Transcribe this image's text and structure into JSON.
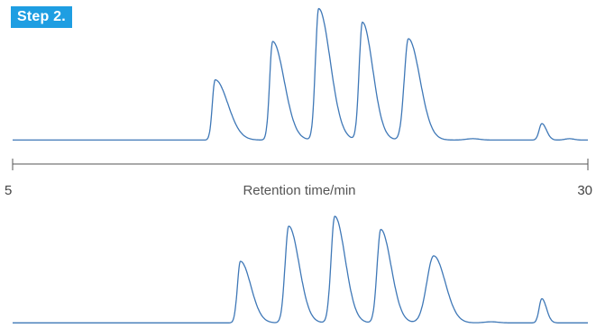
{
  "header": {
    "step_label": "Step 2."
  },
  "chart_data": {
    "type": "line",
    "xlabel": "Retention time/min",
    "xlim": [
      5,
      30
    ],
    "x_ticks": [
      "5",
      "30"
    ],
    "ylim": [
      0,
      1
    ],
    "grid": false,
    "series": [
      {
        "baseline": 0.03,
        "peaks": [
          {
            "t": 13.8,
            "h": 0.44,
            "w1": 0.12,
            "w2": 0.55
          },
          {
            "t": 16.3,
            "h": 0.72,
            "w1": 0.13,
            "w2": 0.5
          },
          {
            "t": 18.3,
            "h": 0.96,
            "w1": 0.14,
            "w2": 0.5
          },
          {
            "t": 20.2,
            "h": 0.86,
            "w1": 0.14,
            "w2": 0.45
          },
          {
            "t": 22.2,
            "h": 0.74,
            "w1": 0.18,
            "w2": 0.5
          },
          {
            "t": 28.0,
            "h": 0.12,
            "w1": 0.12,
            "w2": 0.2
          }
        ],
        "noise": [
          {
            "t": 25.0,
            "h": 0.01,
            "w": 0.3
          },
          {
            "t": 29.2,
            "h": 0.01,
            "w": 0.2
          }
        ]
      },
      {
        "baseline": 0.03,
        "peaks": [
          {
            "t": 14.9,
            "h": 0.56,
            "w1": 0.13,
            "w2": 0.45
          },
          {
            "t": 17.0,
            "h": 0.88,
            "w1": 0.16,
            "w2": 0.45
          },
          {
            "t": 19.0,
            "h": 0.97,
            "w1": 0.16,
            "w2": 0.45
          },
          {
            "t": 21.0,
            "h": 0.85,
            "w1": 0.16,
            "w2": 0.45
          },
          {
            "t": 23.3,
            "h": 0.61,
            "w1": 0.3,
            "w2": 0.5
          },
          {
            "t": 28.0,
            "h": 0.22,
            "w1": 0.12,
            "w2": 0.2
          }
        ],
        "noise": [
          {
            "t": 25.8,
            "h": 0.01,
            "w": 0.3
          }
        ]
      }
    ]
  }
}
